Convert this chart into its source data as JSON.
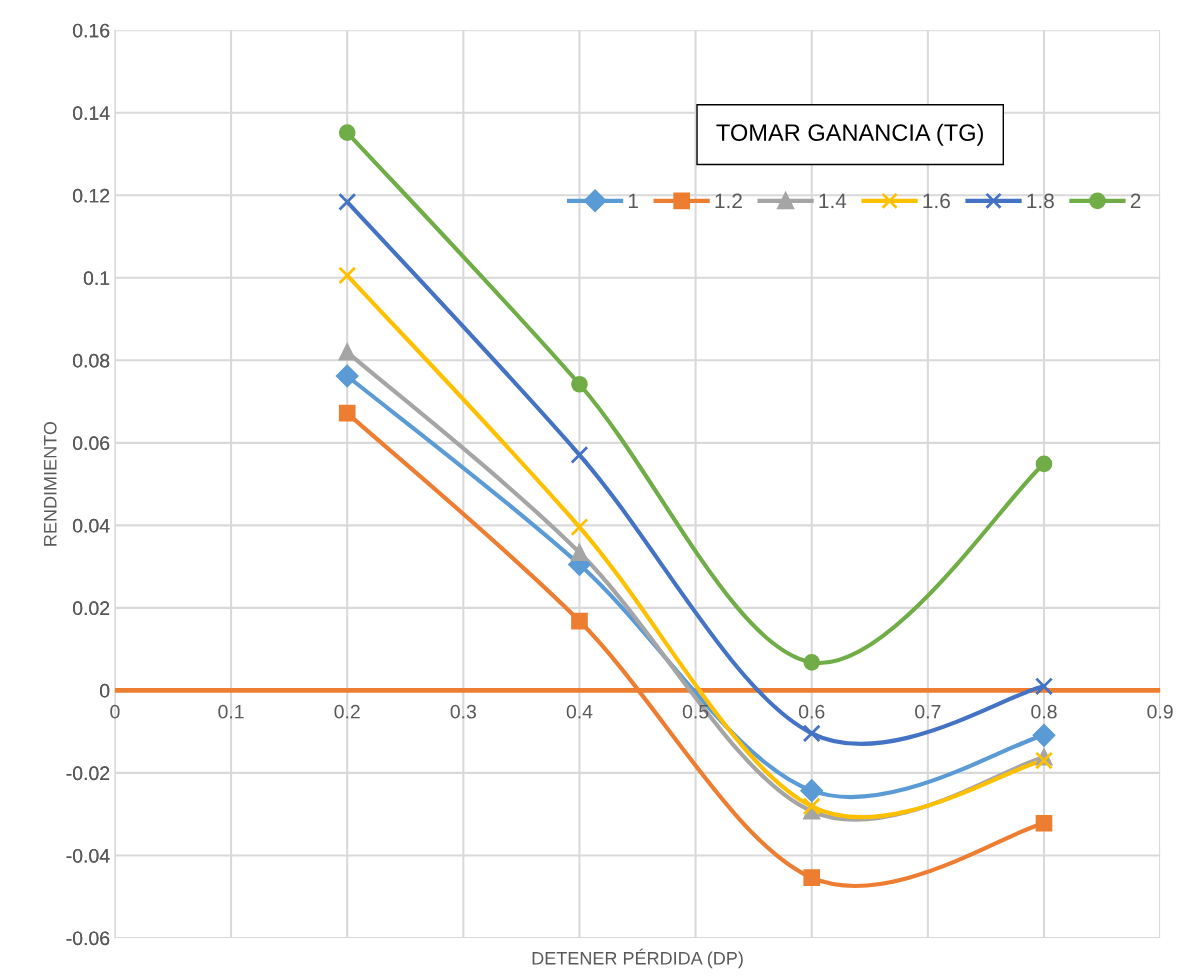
{
  "chart_data": {
    "type": "line",
    "title": "TOMAR GANANCIA (TG)",
    "xlabel": "DETENER PÉRDIDA (DP)",
    "ylabel": "RENDIMIENTO",
    "x": [
      0.2,
      0.4,
      0.6,
      0.8
    ],
    "series": [
      {
        "name": "1",
        "color": "#5b9bd5",
        "marker": "diamond",
        "values": [
          0.0762,
          0.0305,
          -0.0243,
          -0.0109
        ]
      },
      {
        "name": "1.2",
        "color": "#ed7d31",
        "marker": "square",
        "values": [
          0.0672,
          0.0168,
          -0.0454,
          -0.0322
        ]
      },
      {
        "name": "1.4",
        "color": "#a5a5a5",
        "marker": "triangle",
        "values": [
          0.082,
          0.0334,
          -0.0293,
          -0.0162
        ]
      },
      {
        "name": "1.6",
        "color": "#ffc000",
        "marker": "cross",
        "values": [
          0.1006,
          0.0396,
          -0.0281,
          -0.017
        ]
      },
      {
        "name": "1.8",
        "color": "#4472c4",
        "marker": "cross",
        "values": [
          0.1184,
          0.0571,
          -0.0104,
          0.001
        ]
      },
      {
        "name": "2",
        "color": "#70ad47",
        "marker": "circle",
        "values": [
          0.1352,
          0.0742,
          0.0068,
          0.0549
        ]
      }
    ],
    "xlim": [
      0,
      0.9
    ],
    "xticks": [
      0,
      0.1,
      0.2,
      0.3,
      0.4,
      0.5,
      0.6,
      0.7,
      0.8,
      0.9
    ],
    "ylim": [
      -0.06,
      0.16
    ],
    "yticks": [
      -0.06,
      -0.04,
      -0.02,
      0,
      0.02,
      0.04,
      0.06,
      0.08,
      0.1,
      0.12,
      0.14,
      0.16
    ],
    "ref_lines": [
      {
        "axis": "y",
        "value": 0,
        "label": null,
        "color": "#ed7d31"
      }
    ],
    "grid": true,
    "legend": "top right",
    "line_style": "solid"
  }
}
